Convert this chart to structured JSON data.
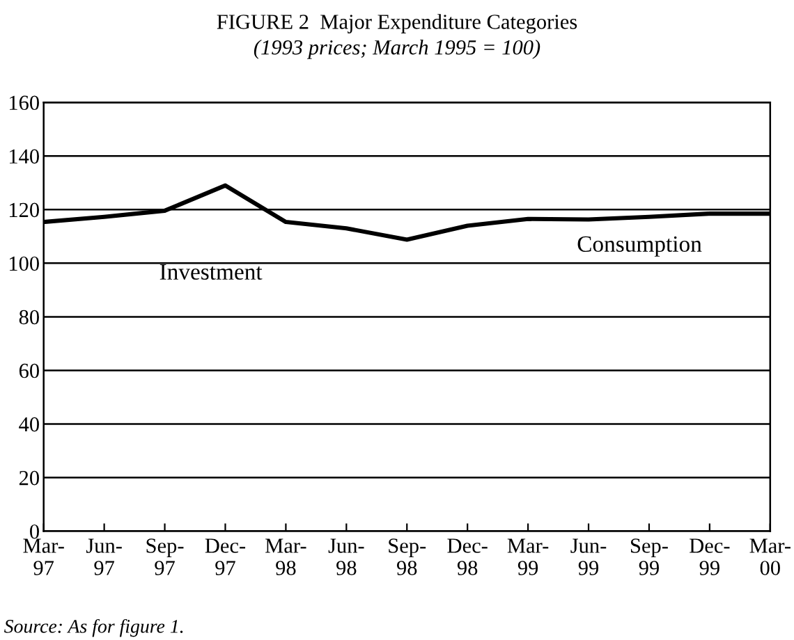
{
  "chart_data": {
    "type": "line",
    "title": "FIGURE 2  Major Expenditure Categories",
    "subtitle": "(1993 prices; March 1995 = 100)",
    "categories": [
      "Mar-\n97",
      "Jun-\n97",
      "Sep-\n97",
      "Dec-\n97",
      "Mar-\n98",
      "Jun-\n98",
      "Sep-\n98",
      "Dec-\n98",
      "Mar-\n99",
      "Jun-\n99",
      "Sep-\n99",
      "Dec-\n99",
      "Mar-\n00"
    ],
    "series": [
      {
        "color": "#000000",
        "values": [
          115.4,
          117.3,
          119.6,
          129,
          115.4,
          113,
          108.8,
          114,
          116.5,
          116.3,
          117.3,
          118.5,
          118.5
        ]
      }
    ],
    "ylim": [
      0,
      160
    ],
    "yticks": [
      0,
      20,
      40,
      60,
      80,
      100,
      120,
      140,
      160
    ],
    "grid": "y",
    "marker": "none",
    "line_style": "solid",
    "annotations": [
      "Investment",
      "Consumption",
      "Source: As for figure 1."
    ]
  }
}
